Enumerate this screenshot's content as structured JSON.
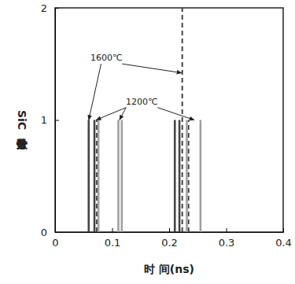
{
  "chart_data": {
    "type": "stem",
    "xlabel": "时    间(ns)",
    "ylabel": "SiC分子数量",
    "xlim": [
      0,
      0.4
    ],
    "xticks": [
      0,
      0.1,
      0.2,
      0.3,
      0.4
    ],
    "ylim": [
      0,
      2
    ],
    "yticks": [
      0,
      1,
      2
    ],
    "grid": false,
    "series": [
      {
        "color": "#444444",
        "line_style": "solid",
        "x": [
          0.059,
          0.069,
          0.21,
          0.218
        ],
        "values": [
          1,
          1,
          1,
          1
        ]
      },
      {
        "color": "#444444",
        "line_style": "dashed",
        "x": [
          0.073,
          0.223,
          0.234
        ],
        "values": [
          1,
          2,
          1
        ]
      },
      {
        "color": "#a0a0a0",
        "line_style": "solid",
        "x": [
          0.076,
          0.111,
          0.117,
          0.231,
          0.255
        ],
        "values": [
          1,
          1,
          1,
          1,
          1
        ]
      }
    ],
    "annotations": [
      {
        "text": "1600℃",
        "x": 0.09,
        "y": 1.55,
        "arrows": [
          [
            0.059,
            1.0
          ],
          [
            0.222,
            1.42
          ]
        ]
      },
      {
        "text": "1200℃",
        "x": 0.152,
        "y": 1.16,
        "arrows": [
          [
            0.072,
            1.0
          ],
          [
            0.113,
            1.0
          ],
          [
            0.244,
            1.0
          ]
        ]
      }
    ]
  }
}
